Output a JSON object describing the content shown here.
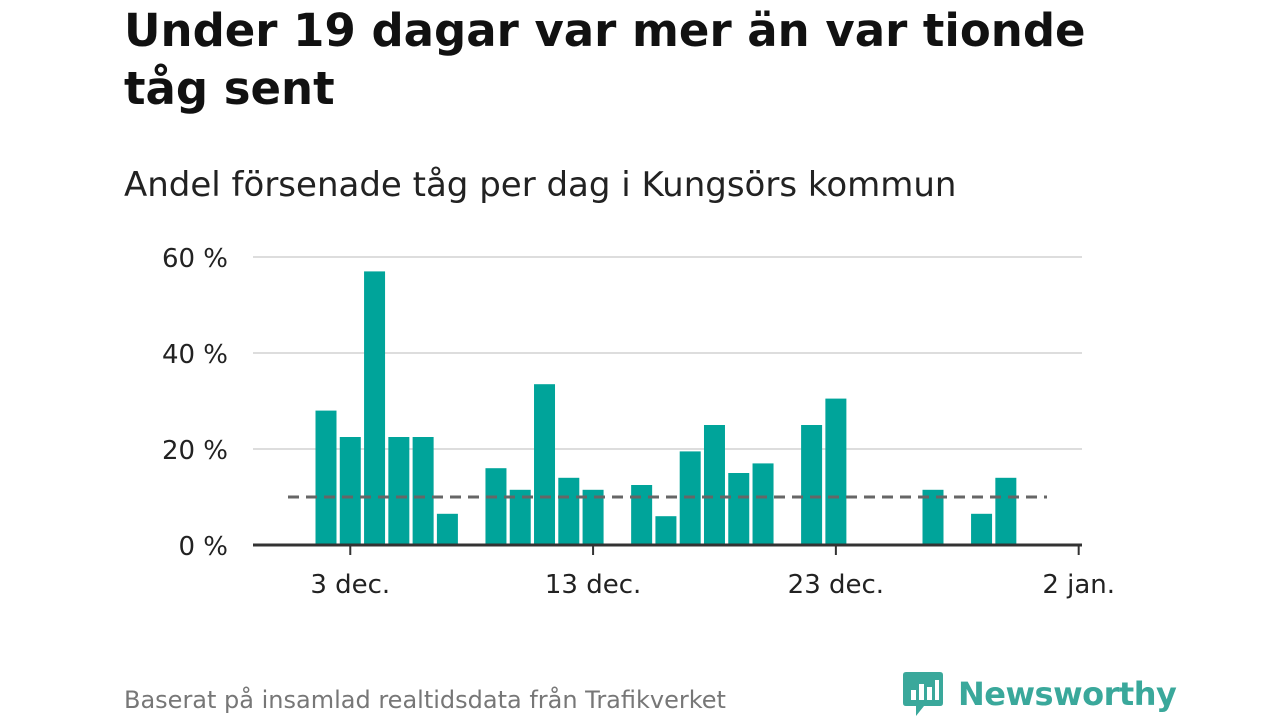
{
  "title": "Under 19 dagar var mer än var tionde tåg sent",
  "subtitle": "Andel försenade tåg per dag i Kungsörs kommun",
  "source": "Baserat på insamlad realtidsdata från Trafikverket",
  "brand": {
    "name": "Newsworthy",
    "icon": "newsworthy-logo-icon",
    "color": "#3aa89b"
  },
  "colors": {
    "bar": "#00a49a",
    "grid": "#dddddd",
    "axis": "#333333",
    "reference": "#666666"
  },
  "chart_data": {
    "type": "bar",
    "title": "Under 19 dagar var mer än var tionde tåg sent",
    "subtitle": "Andel försenade tåg per dag i Kungsörs kommun",
    "x": [
      "2 dec.",
      "3 dec.",
      "4 dec.",
      "5 dec.",
      "6 dec.",
      "7 dec.",
      "8 dec.",
      "9 dec.",
      "10 dec.",
      "11 dec.",
      "12 dec.",
      "13 dec.",
      "14 dec.",
      "15 dec.",
      "16 dec.",
      "17 dec.",
      "18 dec.",
      "19 dec.",
      "20 dec.",
      "21 dec.",
      "22 dec.",
      "23 dec.",
      "24 dec.",
      "25 dec.",
      "26 dec.",
      "27 dec.",
      "28 dec.",
      "29 dec.",
      "30 dec.",
      "31 dec.",
      "1 jan.",
      "2 jan."
    ],
    "values": [
      28,
      22.5,
      57,
      22.5,
      22.5,
      6.5,
      null,
      16,
      11.5,
      33.5,
      14,
      11.5,
      null,
      12.5,
      6,
      19.5,
      25,
      15,
      17,
      null,
      25,
      30.5,
      null,
      null,
      null,
      11.5,
      null,
      6.5,
      14,
      null,
      null,
      null
    ],
    "reference_line": {
      "value": 10,
      "style": "dashed"
    },
    "xticks": [
      "3 dec.",
      "13 dec.",
      "23 dec.",
      "2 jan."
    ],
    "yticks": [
      "0 %",
      "20 %",
      "40 %",
      "60 %"
    ],
    "ylim": [
      0,
      60
    ],
    "grid": true
  }
}
